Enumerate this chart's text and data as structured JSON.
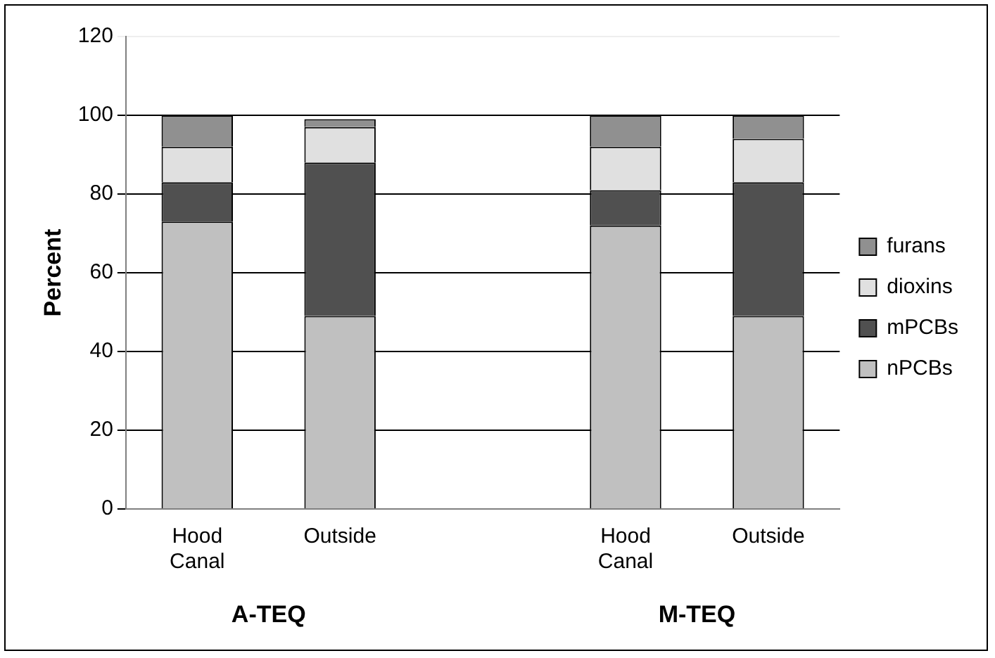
{
  "chart_data": {
    "type": "bar",
    "stacked": true,
    "ylabel": "Percent",
    "categories": [
      "Hood Canal",
      "Outside",
      null,
      "Hood Canal",
      "Outside"
    ],
    "series": [
      {
        "name": "nPCBs",
        "color": "#c0c0c0",
        "values": [
          73,
          49,
          null,
          72,
          49
        ]
      },
      {
        "name": "mPCBs",
        "color": "#505050",
        "values": [
          10,
          39,
          null,
          9,
          34
        ]
      },
      {
        "name": "dioxins",
        "color": "#e0e0e0",
        "values": [
          9,
          9,
          null,
          11,
          11
        ]
      },
      {
        "name": "furans",
        "color": "#909090",
        "values": [
          8,
          2,
          null,
          8,
          6
        ]
      }
    ],
    "ylim": [
      0,
      120
    ],
    "yticks": [
      0,
      20,
      40,
      60,
      80,
      100,
      120
    ],
    "grid": "y",
    "legend": "right",
    "annotations": [
      "A-TEQ",
      "M-TEQ"
    ]
  }
}
